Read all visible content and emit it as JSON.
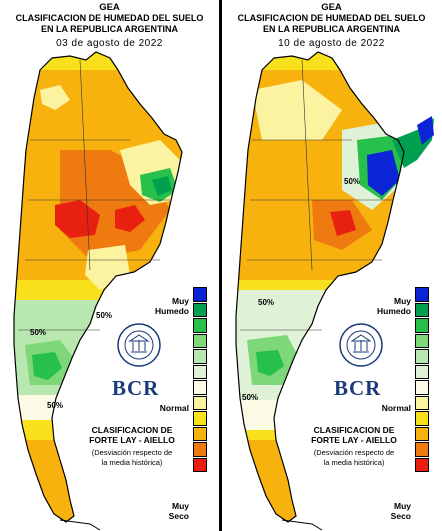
{
  "panels": [
    {
      "agency": "GEA",
      "title_line1": "CLASIFICACION DE HUMEDAD DEL SUELO",
      "title_line2": "EN LA REPUBLICA ARGENTINA",
      "date": "03 de agosto de 2022",
      "contour_labels": [
        "50%",
        "50%",
        "50%"
      ]
    },
    {
      "agency": "GEA",
      "title_line1": "CLASIFICACION DE HUMEDAD DEL SUELO",
      "title_line2": "EN LA REPUBLICA ARGENTINA",
      "date": "10 de agosto de 2022",
      "contour_labels": [
        "50%",
        "50%",
        "50%"
      ]
    }
  ],
  "legend": {
    "top_label_line1": "Muy",
    "top_label_line2": "Humedo",
    "middle_label": "Normal",
    "bottom_label_line1": "Muy",
    "bottom_label_line2": "Seco",
    "colors": [
      "#0a24d6",
      "#00a050",
      "#26c04a",
      "#7ed87a",
      "#b8e8b0",
      "#dff2d8",
      "#fbfbe6",
      "#fbf3a0",
      "#f8e01c",
      "#f7b20e",
      "#ef7a10",
      "#e72010"
    ]
  },
  "classification": {
    "title_line1": "CLASIFICACION DE",
    "title_line2": "FORTE LAY - AIELLO",
    "subtitle_line1": "(Desviación respecto de",
    "subtitle_line2": "la media histórica)"
  },
  "logo": {
    "text": "BCR",
    "seal_text": "BOLSA DE COMERCIO DE ROSARIO"
  }
}
